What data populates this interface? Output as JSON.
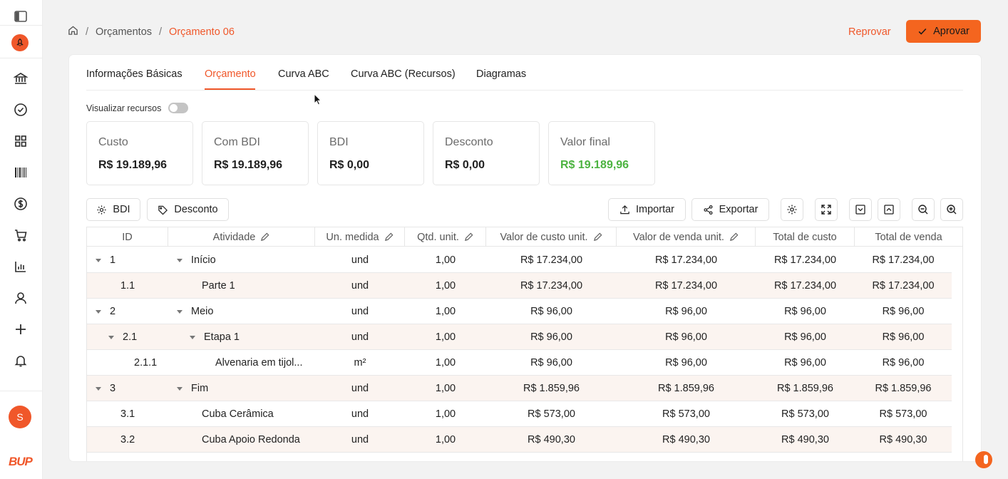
{
  "sidebar": {
    "avatar_letter": "S",
    "brand": "BUP",
    "icons": [
      "panel-toggle-icon",
      "rocket-icon",
      "bank-icon",
      "check-circle-icon",
      "grid-icon",
      "barcode-icon",
      "dollar-icon",
      "cart-icon",
      "bar-chart-icon",
      "user-icon",
      "plus-icon",
      "bell-icon"
    ]
  },
  "breadcrumb": {
    "level1": "Orçamentos",
    "current": "Orçamento 06",
    "separator": "/"
  },
  "header": {
    "reject_label": "Reprovar",
    "approve_label": "Aprovar"
  },
  "tabs": [
    {
      "label": "Informações Básicas",
      "active": false
    },
    {
      "label": "Orçamento",
      "active": true
    },
    {
      "label": "Curva ABC",
      "active": false
    },
    {
      "label": "Curva ABC (Recursos)",
      "active": false
    },
    {
      "label": "Diagramas",
      "active": false
    }
  ],
  "toggle": {
    "label": "Visualizar recursos",
    "on": false
  },
  "stats": [
    {
      "label": "Custo",
      "value": "R$ 19.189,96"
    },
    {
      "label": "Com BDI",
      "value": "R$ 19.189,96"
    },
    {
      "label": "BDI",
      "value": "R$ 0,00"
    },
    {
      "label": "Desconto",
      "value": "R$ 0,00"
    },
    {
      "label": "Valor final",
      "value": "R$ 19.189,96",
      "color": "#4cb340"
    }
  ],
  "toolbar": {
    "bdi_label": "BDI",
    "discount_label": "Desconto",
    "import_label": "Importar",
    "export_label": "Exportar"
  },
  "table": {
    "headers": [
      "ID",
      "Atividade",
      "Un. medida",
      "Qtd. unit.",
      "Valor de custo unit.",
      "Valor de venda unit.",
      "Total de custo",
      "Total de venda"
    ],
    "rows": [
      {
        "id": "1",
        "activity": "Início",
        "unit": "und",
        "qty": "1,00",
        "cost_unit": "R$ 17.234,00",
        "sale_unit": "R$ 17.234,00",
        "total_cost": "R$ 17.234,00",
        "total_sale": "R$ 17.234,00"
      },
      {
        "id": "1.1",
        "activity": "Parte 1",
        "unit": "und",
        "qty": "1,00",
        "cost_unit": "R$ 17.234,00",
        "sale_unit": "R$ 17.234,00",
        "total_cost": "R$ 17.234,00",
        "total_sale": "R$ 17.234,00"
      },
      {
        "id": "2",
        "activity": "Meio",
        "unit": "und",
        "qty": "1,00",
        "cost_unit": "R$ 96,00",
        "sale_unit": "R$ 96,00",
        "total_cost": "R$ 96,00",
        "total_sale": "R$ 96,00"
      },
      {
        "id": "2.1",
        "activity": "Etapa 1",
        "unit": "und",
        "qty": "1,00",
        "cost_unit": "R$ 96,00",
        "sale_unit": "R$ 96,00",
        "total_cost": "R$ 96,00",
        "total_sale": "R$ 96,00"
      },
      {
        "id": "2.1.1",
        "activity": "Alvenaria em tijol...",
        "unit": "m²",
        "qty": "1,00",
        "cost_unit": "R$ 96,00",
        "sale_unit": "R$ 96,00",
        "total_cost": "R$ 96,00",
        "total_sale": "R$ 96,00"
      },
      {
        "id": "3",
        "activity": "Fim",
        "unit": "und",
        "qty": "1,00",
        "cost_unit": "R$ 1.859,96",
        "sale_unit": "R$ 1.859,96",
        "total_cost": "R$ 1.859,96",
        "total_sale": "R$ 1.859,96"
      },
      {
        "id": "3.1",
        "activity": "Cuba Cerâmica",
        "unit": "und",
        "qty": "1,00",
        "cost_unit": "R$ 573,00",
        "sale_unit": "R$ 573,00",
        "total_cost": "R$ 573,00",
        "total_sale": "R$ 573,00"
      },
      {
        "id": "3.2",
        "activity": "Cuba Apoio Redonda",
        "unit": "und",
        "qty": "1,00",
        "cost_unit": "R$ 490,30",
        "sale_unit": "R$ 490,30",
        "total_cost": "R$ 490,30",
        "total_sale": "R$ 490,30"
      }
    ]
  },
  "colors": {
    "accent": "#f0572a",
    "approve_bg": "#f4651f",
    "positive": "#4cb340",
    "row_alt": "#fbf4f0"
  }
}
